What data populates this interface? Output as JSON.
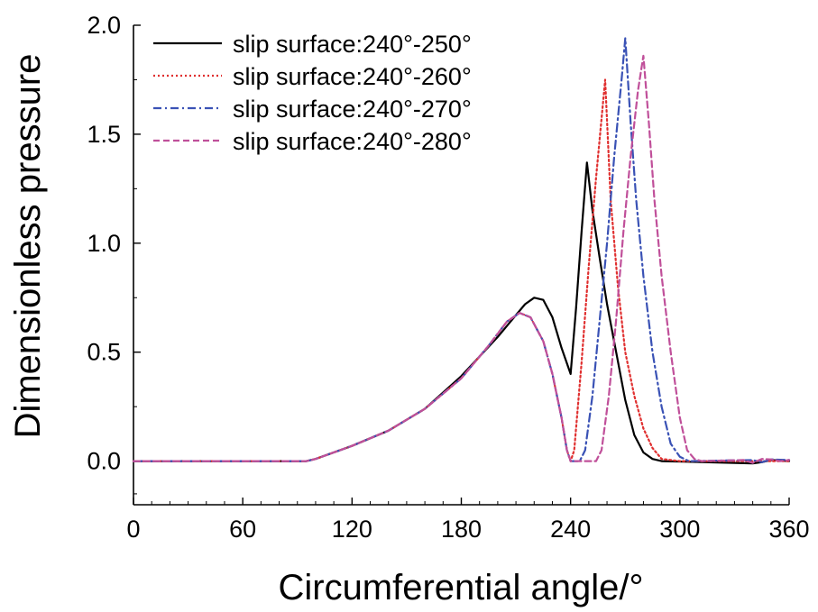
{
  "chart_data": {
    "type": "line",
    "title": "",
    "xlabel": "Circumferential angle/°",
    "ylabel": "Dimensionless pressure",
    "xlim": [
      0,
      360
    ],
    "ylim": [
      -0.2,
      2.0
    ],
    "xticks": [
      0,
      60,
      120,
      180,
      240,
      300,
      360
    ],
    "yticks": [
      0.0,
      0.5,
      1.0,
      1.5,
      2.0
    ],
    "xtick_labels": [
      "0",
      "60",
      "120",
      "180",
      "240",
      "300",
      "360"
    ],
    "ytick_labels": [
      "0.0",
      "0.5",
      "1.0",
      "1.5",
      "2.0"
    ],
    "grid": false,
    "legend": {
      "position": "top-left"
    },
    "series": [
      {
        "name": "slip surface:240°-250°",
        "color": "#000000",
        "dash": "solid",
        "points": [
          [
            0,
            0
          ],
          [
            95,
            0
          ],
          [
            100,
            0.01
          ],
          [
            120,
            0.07
          ],
          [
            140,
            0.14
          ],
          [
            160,
            0.24
          ],
          [
            180,
            0.39
          ],
          [
            200,
            0.57
          ],
          [
            210,
            0.67
          ],
          [
            215,
            0.72
          ],
          [
            220,
            0.75
          ],
          [
            225,
            0.74
          ],
          [
            230,
            0.66
          ],
          [
            235,
            0.52
          ],
          [
            240,
            0.4
          ],
          [
            243,
            0.7
          ],
          [
            246,
            1.05
          ],
          [
            249,
            1.37
          ],
          [
            252,
            1.15
          ],
          [
            256,
            0.93
          ],
          [
            260,
            0.72
          ],
          [
            265,
            0.5
          ],
          [
            270,
            0.28
          ],
          [
            275,
            0.12
          ],
          [
            280,
            0.04
          ],
          [
            285,
            0.01
          ],
          [
            290,
            0
          ],
          [
            340,
            -0.01
          ],
          [
            345,
            -0.005
          ],
          [
            350,
            0.005
          ],
          [
            360,
            0
          ]
        ]
      },
      {
        "name": "slip surface:240°-260°",
        "color": "#e03030",
        "dash": "dotted",
        "points": [
          [
            0,
            0
          ],
          [
            95,
            0
          ],
          [
            100,
            0.01
          ],
          [
            120,
            0.07
          ],
          [
            140,
            0.14
          ],
          [
            160,
            0.24
          ],
          [
            180,
            0.38
          ],
          [
            195,
            0.53
          ],
          [
            205,
            0.64
          ],
          [
            212,
            0.68
          ],
          [
            218,
            0.66
          ],
          [
            225,
            0.55
          ],
          [
            230,
            0.4
          ],
          [
            235,
            0.2
          ],
          [
            238,
            0.05
          ],
          [
            240,
            0
          ],
          [
            242,
            0.05
          ],
          [
            246,
            0.45
          ],
          [
            250,
            0.9
          ],
          [
            254,
            1.3
          ],
          [
            259,
            1.75
          ],
          [
            262,
            1.2
          ],
          [
            266,
            0.8
          ],
          [
            270,
            0.5
          ],
          [
            275,
            0.3
          ],
          [
            280,
            0.15
          ],
          [
            285,
            0.06
          ],
          [
            290,
            0.01
          ],
          [
            300,
            0
          ],
          [
            360,
            0
          ]
        ]
      },
      {
        "name": "slip surface:240°-270°",
        "color": "#3a52b5",
        "dash": "dashdot",
        "points": [
          [
            0,
            0
          ],
          [
            95,
            0
          ],
          [
            100,
            0.01
          ],
          [
            120,
            0.07
          ],
          [
            140,
            0.14
          ],
          [
            160,
            0.24
          ],
          [
            180,
            0.38
          ],
          [
            195,
            0.53
          ],
          [
            205,
            0.64
          ],
          [
            212,
            0.68
          ],
          [
            218,
            0.66
          ],
          [
            225,
            0.55
          ],
          [
            230,
            0.4
          ],
          [
            235,
            0.2
          ],
          [
            238,
            0.05
          ],
          [
            240,
            0
          ],
          [
            245,
            0
          ],
          [
            248,
            0.05
          ],
          [
            252,
            0.3
          ],
          [
            256,
            0.65
          ],
          [
            260,
            1.0
          ],
          [
            264,
            1.4
          ],
          [
            268,
            1.75
          ],
          [
            270,
            1.94
          ],
          [
            273,
            1.55
          ],
          [
            276,
            1.2
          ],
          [
            280,
            0.85
          ],
          [
            285,
            0.5
          ],
          [
            290,
            0.25
          ],
          [
            295,
            0.08
          ],
          [
            300,
            0.02
          ],
          [
            305,
            0
          ],
          [
            340,
            0.005
          ],
          [
            345,
            -0.005
          ],
          [
            350,
            0.008
          ],
          [
            360,
            0.005
          ]
        ]
      },
      {
        "name": "slip surface:240°-280°",
        "color": "#c0509a",
        "dash": "dashed",
        "points": [
          [
            0,
            0
          ],
          [
            95,
            0
          ],
          [
            100,
            0.01
          ],
          [
            120,
            0.07
          ],
          [
            140,
            0.14
          ],
          [
            160,
            0.24
          ],
          [
            180,
            0.38
          ],
          [
            195,
            0.53
          ],
          [
            205,
            0.64
          ],
          [
            212,
            0.68
          ],
          [
            218,
            0.66
          ],
          [
            225,
            0.55
          ],
          [
            230,
            0.4
          ],
          [
            235,
            0.2
          ],
          [
            238,
            0.05
          ],
          [
            240,
            0
          ],
          [
            254,
            0
          ],
          [
            257,
            0.05
          ],
          [
            261,
            0.3
          ],
          [
            265,
            0.65
          ],
          [
            269,
            1.05
          ],
          [
            273,
            1.4
          ],
          [
            277,
            1.7
          ],
          [
            280,
            1.86
          ],
          [
            283,
            1.55
          ],
          [
            286,
            1.2
          ],
          [
            290,
            0.85
          ],
          [
            295,
            0.5
          ],
          [
            300,
            0.2
          ],
          [
            304,
            0.05
          ],
          [
            308,
            0.01
          ],
          [
            312,
            0
          ],
          [
            335,
            0.005
          ],
          [
            340,
            -0.008
          ],
          [
            345,
            0.01
          ],
          [
            350,
            0.008
          ],
          [
            355,
            0
          ],
          [
            360,
            0.005
          ]
        ]
      }
    ]
  }
}
